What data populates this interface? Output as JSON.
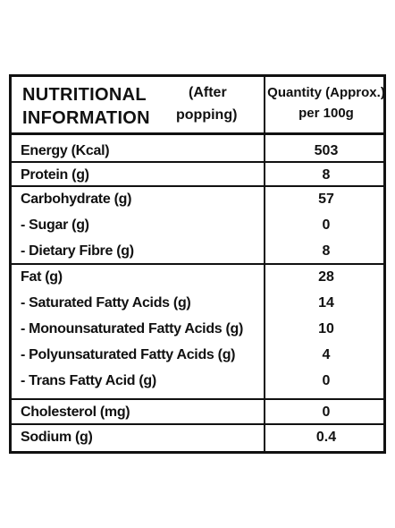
{
  "header": {
    "title_line1": "NUTRITIONAL",
    "title_line2": "INFORMATION",
    "note_line1": "(After",
    "note_line2": "popping)",
    "qty_line1": "Quantity (Approx.)",
    "qty_line2": "per 100g"
  },
  "rows": [
    {
      "name": "Energy (Kcal)",
      "value": "503"
    },
    {
      "name": "Protein (g)",
      "value": "8"
    },
    {
      "name": "Carbohydrate (g)",
      "value": "57"
    },
    {
      "name": "- Sugar (g)",
      "value": "0"
    },
    {
      "name": "- Dietary Fibre (g)",
      "value": "8"
    },
    {
      "name": "Fat (g)",
      "value": "28"
    },
    {
      "name": "- Saturated Fatty Acids (g)",
      "value": "14"
    },
    {
      "name": "- Monounsaturated Fatty Acids (g)",
      "value": "10"
    },
    {
      "name": "- Polyunsaturated Fatty Acids (g)",
      "value": "4"
    },
    {
      "name": "- Trans Fatty Acid (g)",
      "value": "0"
    },
    {
      "name": "Cholesterol (mg)",
      "value": "0"
    },
    {
      "name": "Sodium (g)",
      "value": "0.4"
    }
  ]
}
